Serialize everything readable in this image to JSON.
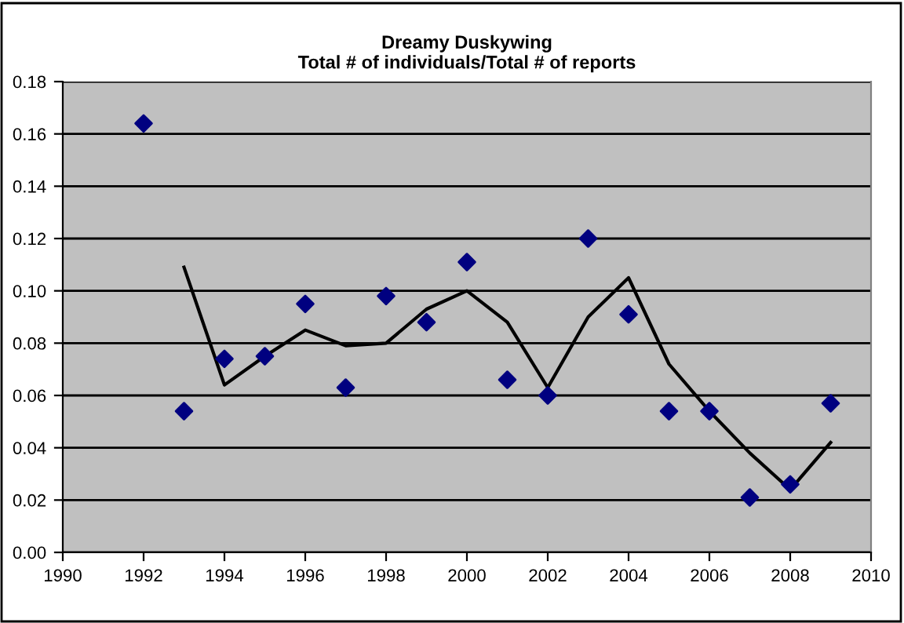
{
  "chart_data": {
    "type": "scatter",
    "title": "Dreamy Duskywing\nTotal # of individuals/Total # of reports",
    "x": [
      1992,
      1993,
      1994,
      1995,
      1996,
      1997,
      1998,
      1999,
      2000,
      2001,
      2002,
      2003,
      2004,
      2005,
      2006,
      2007,
      2008,
      2009
    ],
    "series": [
      {
        "color": "#000080",
        "marker": "diamond",
        "values": [
          0.164,
          0.054,
          0.074,
          0.075,
          0.095,
          0.063,
          0.098,
          0.088,
          0.111,
          0.066,
          0.06,
          0.12,
          0.091,
          0.054,
          0.054,
          0.021,
          0.026,
          0.057
        ]
      },
      {
        "type": "line",
        "color": "#000000",
        "marker": "none",
        "line_style": "solid",
        "x": [
          1993,
          1994,
          1995,
          1996,
          1997,
          1998,
          1999,
          2000,
          2001,
          2002,
          2003,
          2004,
          2005,
          2006,
          2007,
          2008,
          2009
        ],
        "values": [
          0.109,
          0.064,
          0.075,
          0.085,
          0.079,
          0.08,
          0.093,
          0.1,
          0.088,
          0.063,
          0.09,
          0.105,
          0.072,
          0.054,
          0.038,
          0.024,
          0.042
        ]
      }
    ],
    "xlim": [
      1990,
      2010
    ],
    "xticks": [
      1990,
      1992,
      1994,
      1996,
      1998,
      2000,
      2002,
      2004,
      2006,
      2008,
      2010
    ],
    "ylim": [
      0,
      0.18
    ],
    "yticks": [
      {
        "value": 0,
        "label": "0.00"
      },
      {
        "value": 0.02,
        "label": "0.02"
      },
      {
        "value": 0.04,
        "label": "0.04"
      },
      {
        "value": 0.06,
        "label": "0.06"
      },
      {
        "value": 0.08,
        "label": "0.08"
      },
      {
        "value": 0.1,
        "label": "0.10"
      },
      {
        "value": 0.12,
        "label": "0.12"
      },
      {
        "value": 0.14,
        "label": "0.14"
      },
      {
        "value": 0.16,
        "label": "0.16"
      },
      {
        "value": 0.18,
        "label": "0.18"
      }
    ],
    "grid": "y",
    "legend": false
  }
}
